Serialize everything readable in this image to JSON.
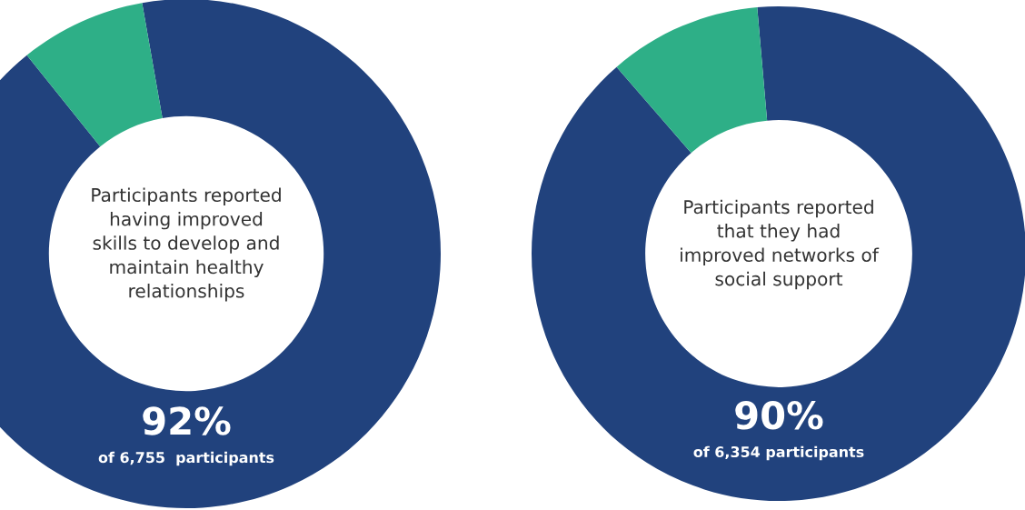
{
  "chart_data": [
    {
      "type": "donut",
      "categories": [
        null,
        null
      ],
      "values": [
        92,
        8
      ],
      "colors": [
        "#21427d",
        "#2eaf87"
      ],
      "value_labels": [
        "92%",
        null
      ],
      "annotations": [
        "Participants reported\nhaving improved\nskills to develop and\nmaintain healthy\nrelationships",
        "of 6,755  participants"
      ]
    },
    {
      "type": "donut",
      "categories": [
        null,
        null
      ],
      "values": [
        90,
        10
      ],
      "colors": [
        "#21427d",
        "#2eaf87"
      ],
      "value_labels": [
        "90%",
        null
      ],
      "annotations": [
        "Participants reported\nthat they had\nimproved networks of\nsocial support",
        "of 6,354 participants"
      ]
    }
  ]
}
